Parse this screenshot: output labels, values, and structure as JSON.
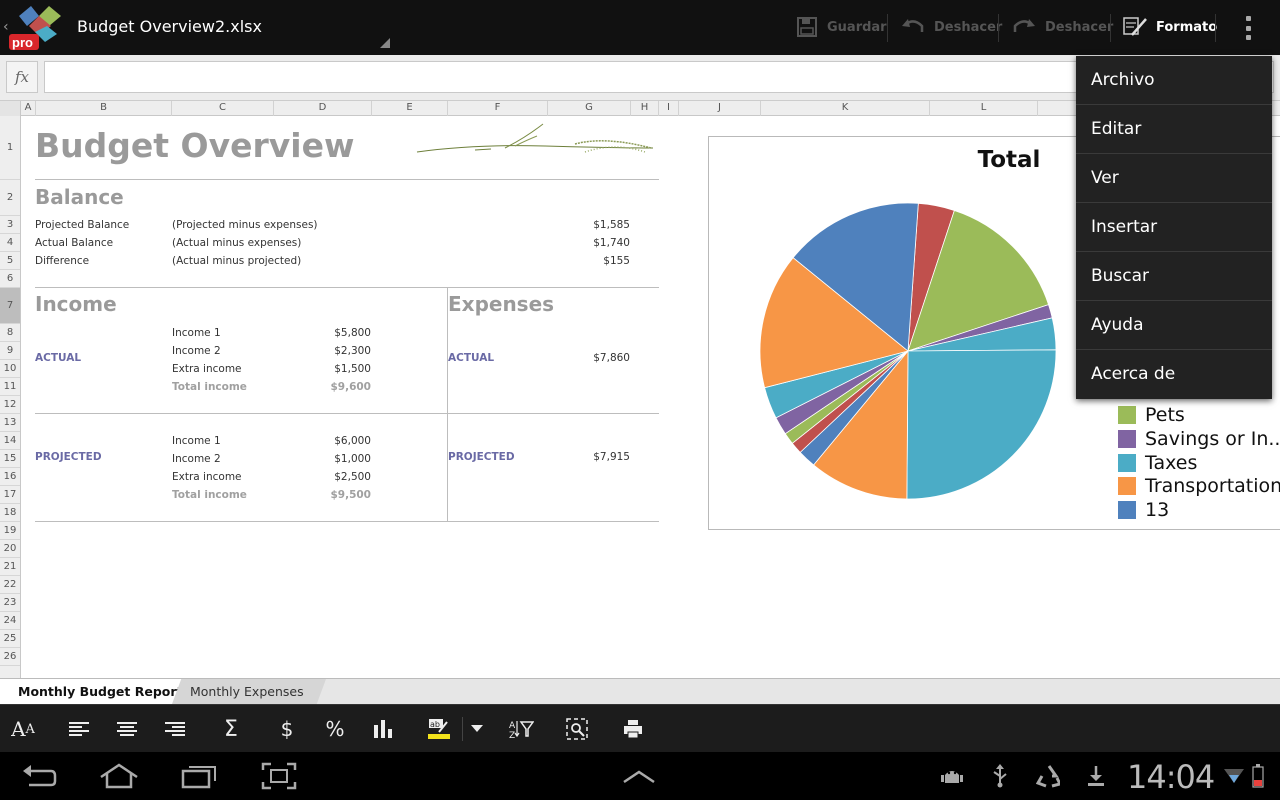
{
  "app": {
    "file_name": "Budget Overview2.xlsx",
    "logo_text": "pro"
  },
  "actionbar": {
    "save_label": "Guardar",
    "undo_label": "Deshacer",
    "redo_label": "Deshacer",
    "format_label": "Formato"
  },
  "formula": {
    "fx_label": "fx",
    "value": ""
  },
  "columns": [
    "A",
    "B",
    "C",
    "D",
    "E",
    "F",
    "G",
    "H",
    "I",
    "J",
    "K",
    "L"
  ],
  "rows": [
    "1",
    "2",
    "3",
    "4",
    "5",
    "6",
    "7",
    "8",
    "9",
    "10",
    "11",
    "12",
    "13",
    "14",
    "15",
    "16",
    "17",
    "18",
    "19",
    "20",
    "21",
    "22",
    "23",
    "24",
    "25",
    "26"
  ],
  "sheet": {
    "title": "Budget Overview",
    "balance": {
      "heading": "Balance",
      "rows": [
        {
          "label": "Projected Balance",
          "desc": "(Projected  minus expenses)",
          "value": "$1,585"
        },
        {
          "label": "Actual Balance",
          "desc": "(Actual  minus expenses)",
          "value": "$1,740"
        },
        {
          "label": "Difference",
          "desc": "(Actual minus projected)",
          "value": "$155"
        }
      ]
    },
    "income": {
      "heading": "Income",
      "actual_label": "ACTUAL",
      "actual": [
        {
          "label": "Income 1",
          "value": "$5,800"
        },
        {
          "label": "Income 2",
          "value": "$2,300"
        },
        {
          "label": "Extra income",
          "value": "$1,500"
        },
        {
          "label": "Total income",
          "value": "$9,600"
        }
      ],
      "projected_label": "PROJECTED",
      "projected": [
        {
          "label": "Income 1",
          "value": "$6,000"
        },
        {
          "label": "Income 2",
          "value": "$1,000"
        },
        {
          "label": "Extra income",
          "value": "$2,500"
        },
        {
          "label": "Total income",
          "value": "$9,500"
        }
      ]
    },
    "expenses": {
      "heading": "Expenses",
      "actual_label": "ACTUAL",
      "actual_value": "$7,860",
      "projected_label": "PROJECTED",
      "projected_value": "$7,915"
    }
  },
  "chart_data": {
    "type": "pie",
    "title": "Total",
    "colors": [
      "#4F81BD",
      "#C0504D",
      "#9BBB59",
      "#8064A2",
      "#4BACC6",
      "#F79646"
    ],
    "slices": [
      {
        "value": 4.0,
        "color": "#C0504D"
      },
      {
        "value": 15.0,
        "color": "#9BBB59"
      },
      {
        "value": 1.5,
        "color": "#8064A2"
      },
      {
        "value": 3.5,
        "color": "#4BACC6"
      },
      {
        "value": 25.5,
        "color": "#4BACC6"
      },
      {
        "value": 11.0,
        "color": "#F79646"
      },
      {
        "value": 2.0,
        "color": "#4F81BD"
      },
      {
        "value": 1.3,
        "color": "#C0504D"
      },
      {
        "value": 1.3,
        "color": "#9BBB59"
      },
      {
        "value": 2.0,
        "color": "#8064A2"
      },
      {
        "value": 3.5,
        "color": "#4BACC6"
      },
      {
        "value": 15.0,
        "color": "#F79646"
      },
      {
        "value": 15.4,
        "color": "#4F81BD"
      }
    ],
    "legend": [
      {
        "label": "Pets",
        "color": "#9BBB59"
      },
      {
        "label": "Savings or In...",
        "color": "#8064A2"
      },
      {
        "label": "Taxes",
        "color": "#4BACC6"
      },
      {
        "label": "Transportation",
        "color": "#F79646"
      },
      {
        "label": "13",
        "color": "#4F81BD"
      }
    ]
  },
  "menu": {
    "items": [
      "Archivo",
      "Editar",
      "Ver",
      "Insertar",
      "Buscar",
      "Ayuda",
      "Acerca de"
    ]
  },
  "tabs": [
    "Monthly Budget Report",
    "Monthly Expenses"
  ],
  "toolbar": {
    "icons": [
      "font-size-icon",
      "align-left-icon",
      "align-center-icon",
      "align-right-icon",
      "sum-icon",
      "currency-icon",
      "percent-icon",
      "chart-icon",
      "highlight-icon",
      "dropdown-arrow-icon",
      "sort-filter-icon",
      "zoom-icon",
      "print-icon"
    ]
  },
  "system": {
    "clock": "14:04"
  }
}
